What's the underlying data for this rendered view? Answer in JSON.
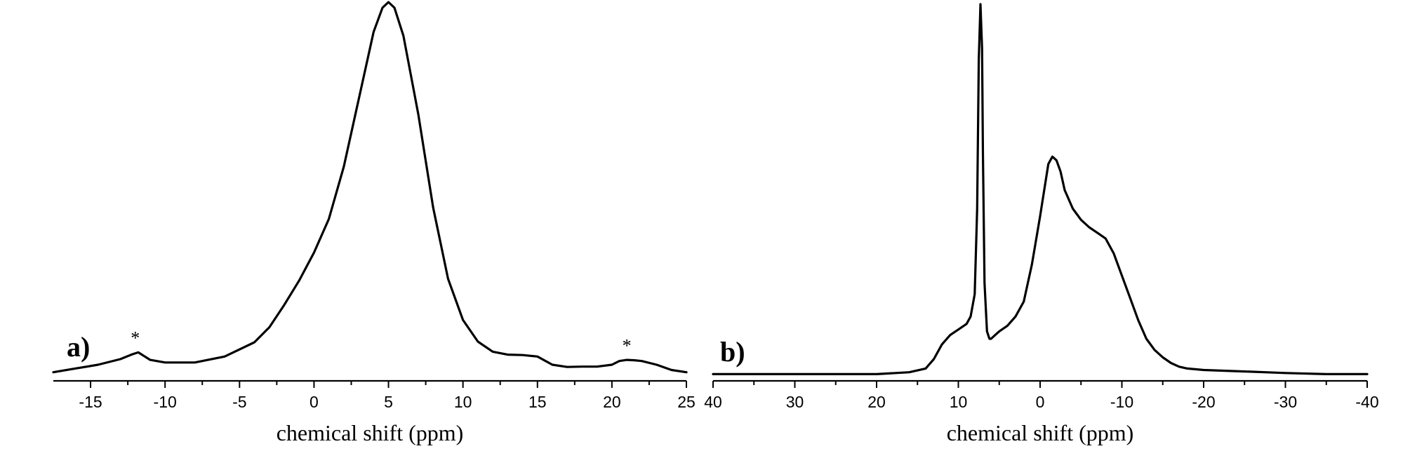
{
  "chart_data": [
    {
      "type": "line",
      "panel_label": "a)",
      "xlabel": "chemical shift (ppm)",
      "ylabel": "",
      "xlim": [
        -17.5,
        25
      ],
      "x_reversed": false,
      "ticks": [
        -15,
        -10,
        -5,
        0,
        5,
        10,
        15,
        20,
        25
      ],
      "tick_labels": [
        "-15",
        "-10",
        "-5",
        "0",
        "5",
        "10",
        "15",
        "20",
        "25"
      ],
      "ylim": [
        0,
        1
      ],
      "grid": false,
      "annotations": [
        {
          "text": "*",
          "x": -12,
          "y": 0.07
        },
        {
          "text": "*",
          "x": 21,
          "y": 0.05
        }
      ],
      "series": [
        {
          "x": [
            -17.5,
            -16,
            -14.5,
            -13,
            -12.2,
            -11.8,
            -11,
            -10,
            -8,
            -6,
            -4,
            -3,
            -2,
            -1,
            0,
            1,
            2,
            3,
            4,
            4.6,
            5,
            5.4,
            6,
            7,
            8,
            9,
            10,
            11,
            12,
            13,
            14,
            15,
            16,
            17,
            18,
            19,
            20,
            20.5,
            21,
            21.5,
            22,
            23,
            24,
            25
          ],
          "y": [
            0.01,
            0.02,
            0.03,
            0.045,
            0.058,
            0.063,
            0.043,
            0.036,
            0.036,
            0.052,
            0.09,
            0.13,
            0.19,
            0.255,
            0.33,
            0.42,
            0.56,
            0.74,
            0.92,
            0.985,
            1.0,
            0.985,
            0.91,
            0.7,
            0.45,
            0.26,
            0.15,
            0.092,
            0.065,
            0.057,
            0.056,
            0.052,
            0.03,
            0.024,
            0.025,
            0.025,
            0.03,
            0.04,
            0.043,
            0.042,
            0.04,
            0.03,
            0.016,
            0.01
          ]
        }
      ]
    },
    {
      "type": "line",
      "panel_label": "b)",
      "xlabel": "chemical shift (ppm)",
      "ylabel": "",
      "xlim": [
        40,
        -40
      ],
      "x_reversed": true,
      "ticks": [
        40,
        30,
        20,
        10,
        0,
        -10,
        -20,
        -30,
        -40
      ],
      "tick_labels": [
        "40",
        "30",
        "20",
        "10",
        "0",
        "-10",
        "-20",
        "-30",
        "-40"
      ],
      "ylim": [
        0,
        1
      ],
      "grid": false,
      "series": [
        {
          "x": [
            40,
            35,
            30,
            25,
            20,
            16,
            14,
            13,
            12,
            11,
            10,
            9,
            8.5,
            8,
            7.7,
            7.5,
            7.3,
            7.1,
            7,
            6.8,
            6.5,
            6.2,
            6,
            5.5,
            5,
            4,
            3,
            2,
            1,
            0,
            -1,
            -1.5,
            -2,
            -2.5,
            -3,
            -4,
            -5,
            -6,
            -7,
            -8,
            -9,
            -10,
            -11,
            -12,
            -13,
            -14,
            -15,
            -16,
            -17,
            -18,
            -20,
            -25,
            -30,
            -35,
            -40
          ],
          "y": [
            0.005,
            0.005,
            0.005,
            0.005,
            0.005,
            0.01,
            0.02,
            0.045,
            0.085,
            0.11,
            0.125,
            0.14,
            0.16,
            0.22,
            0.45,
            0.85,
            1.0,
            0.88,
            0.6,
            0.25,
            0.12,
            0.1,
            0.1,
            0.11,
            0.12,
            0.135,
            0.16,
            0.2,
            0.3,
            0.43,
            0.57,
            0.59,
            0.58,
            0.55,
            0.5,
            0.45,
            0.42,
            0.4,
            0.385,
            0.37,
            0.33,
            0.27,
            0.21,
            0.15,
            0.1,
            0.07,
            0.05,
            0.035,
            0.025,
            0.02,
            0.016,
            0.012,
            0.008,
            0.005,
            0.005
          ]
        }
      ]
    }
  ]
}
